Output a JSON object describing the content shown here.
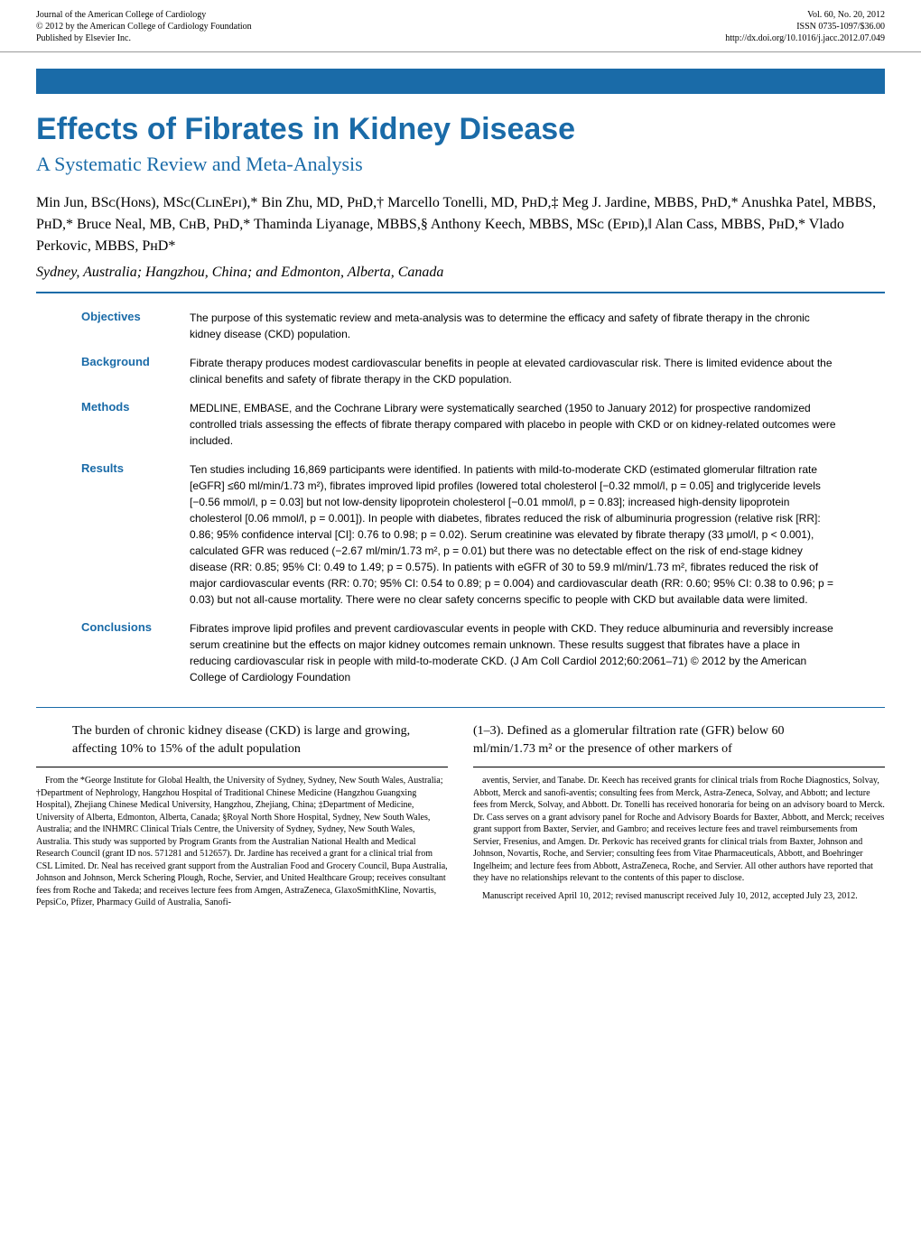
{
  "header": {
    "left": {
      "line1": "Journal of the American College of Cardiology",
      "line2": "© 2012 by the American College of Cardiology Foundation",
      "line3": "Published by Elsevier Inc."
    },
    "right": {
      "line1": "Vol. 60, No. 20, 2012",
      "line2": "ISSN 0735-1097/$36.00",
      "line3": "http://dx.doi.org/10.1016/j.jacc.2012.07.049"
    }
  },
  "title": "Effects of Fibrates in Kidney Disease",
  "subtitle": "A Systematic Review and Meta-Analysis",
  "authors": "Min Jun, BSᴄ(Hᴏɴs), MSᴄ(CʟɪɴEᴘɪ),* Bin Zhu, MD, PʜD,† Marcello Tonelli, MD, PʜD,‡ Meg J. Jardine, MBBS, PʜD,* Anushka Patel, MBBS, PʜD,* Bruce Neal, MB, CʜB, PʜD,* Thaminda Liyanage, MBBS,§ Anthony Keech, MBBS, MSᴄ (Eᴘɪᴅ),‖ Alan Cass, MBBS, PʜD,* Vlado Perkovic, MBBS, PʜD*",
  "affiliation": "Sydney, Australia; Hangzhou, China; and Edmonton, Alberta, Canada",
  "abstract": {
    "objectives": {
      "label": "Objectives",
      "text": "The purpose of this systematic review and meta-analysis was to determine the efficacy and safety of fibrate therapy in the chronic kidney disease (CKD) population."
    },
    "background": {
      "label": "Background",
      "text": "Fibrate therapy produces modest cardiovascular benefits in people at elevated cardiovascular risk. There is limited evidence about the clinical benefits and safety of fibrate therapy in the CKD population."
    },
    "methods": {
      "label": "Methods",
      "text": "MEDLINE, EMBASE, and the Cochrane Library were systematically searched (1950 to January 2012) for prospective randomized controlled trials assessing the effects of fibrate therapy compared with placebo in people with CKD or on kidney-related outcomes were included."
    },
    "results": {
      "label": "Results",
      "text": "Ten studies including 16,869 participants were identified. In patients with mild-to-moderate CKD (estimated glomerular filtration rate [eGFR] ≤60 ml/min/1.73 m²), fibrates improved lipid profiles (lowered total cholesterol [−0.32 mmol/l, p = 0.05] and triglyceride levels [−0.56 mmol/l, p = 0.03] but not low-density lipoprotein cholesterol [−0.01 mmol/l, p = 0.83]; increased high-density lipoprotein cholesterol [0.06 mmol/l, p = 0.001]). In people with diabetes, fibrates reduced the risk of albuminuria progression (relative risk [RR]: 0.86; 95% confidence interval [CI]: 0.76 to 0.98; p = 0.02). Serum creatinine was elevated by fibrate therapy (33 μmol/l, p < 0.001), calculated GFR was reduced (−2.67 ml/min/1.73 m², p = 0.01) but there was no detectable effect on the risk of end-stage kidney disease (RR: 0.85; 95% CI: 0.49 to 1.49; p = 0.575). In patients with eGFR of 30 to 59.9 ml/min/1.73 m², fibrates reduced the risk of major cardiovascular events (RR: 0.70; 95% CI: 0.54 to 0.89; p = 0.004) and cardiovascular death (RR: 0.60; 95% CI: 0.38 to 0.96; p = 0.03) but not all-cause mortality. There were no clear safety concerns specific to people with CKD but available data were limited."
    },
    "conclusions": {
      "label": "Conclusions",
      "text": "Fibrates improve lipid profiles and prevent cardiovascular events in people with CKD. They reduce albuminuria and reversibly increase serum creatinine but the effects on major kidney outcomes remain unknown. These results suggest that fibrates have a place in reducing cardiovascular risk in people with mild-to-moderate CKD. (J Am Coll Cardiol 2012;60:2061–71) © 2012 by the American College of Cardiology Foundation"
    }
  },
  "intro": {
    "left": "The burden of chronic kidney disease (CKD) is large and growing, affecting 10% to 15% of the adult population",
    "right": "(1–3). Defined as a glomerular filtration rate (GFR) below 60 ml/min/1.73 m² or the presence of other markers of"
  },
  "footnotes": {
    "left": "From the *George Institute for Global Health, the University of Sydney, Sydney, New South Wales, Australia; †Department of Nephrology, Hangzhou Hospital of Traditional Chinese Medicine (Hangzhou Guangxing Hospital), Zhejiang Chinese Medical University, Hangzhou, Zhejiang, China; ‡Department of Medicine, University of Alberta, Edmonton, Alberta, Canada; §Royal North Shore Hospital, Sydney, New South Wales, Australia; and the ‖NHMRC Clinical Trials Centre, the University of Sydney, Sydney, New South Wales, Australia. This study was supported by Program Grants from the Australian National Health and Medical Research Council (grant ID nos. 571281 and 512657). Dr. Jardine has received a grant for a clinical trial from CSL Limited. Dr. Neal has received grant support from the Australian Food and Grocery Council, Bupa Australia, Johnson and Johnson, Merck Schering Plough, Roche, Servier, and United Healthcare Group; receives consultant fees from Roche and Takeda; and receives lecture fees from Amgen, AstraZeneca, GlaxoSmithKline, Novartis, PepsiCo, Pfizer, Pharmacy Guild of Australia, Sanofi-",
    "right_p1": "aventis, Servier, and Tanabe. Dr. Keech has received grants for clinical trials from Roche Diagnostics, Solvay, Abbott, Merck and sanofi-aventis; consulting fees from Merck, Astra-Zeneca, Solvay, and Abbott; and lecture fees from Merck, Solvay, and Abbott. Dr. Tonelli has received honoraria for being on an advisory board to Merck. Dr. Cass serves on a grant advisory panel for Roche and Advisory Boards for Baxter, Abbott, and Merck; receives grant support from Baxter, Servier, and Gambro; and receives lecture fees and travel reimbursements from Servier, Fresenius, and Amgen. Dr. Perkovic has received grants for clinical trials from Baxter, Johnson and Johnson, Novartis, Roche, and Servier; consulting fees from Vitae Pharmaceuticals, Abbott, and Boehringer Ingelheim; and lecture fees from Abbott, AstraZeneca, Roche, and Servier. All other authors have reported that they have no relationships relevant to the contents of this paper to disclose.",
    "right_p2": "Manuscript received April 10, 2012; revised manuscript received July 10, 2012, accepted July 23, 2012."
  },
  "colors": {
    "accent": "#1a6ba8",
    "text": "#000000",
    "rule": "#999999"
  }
}
